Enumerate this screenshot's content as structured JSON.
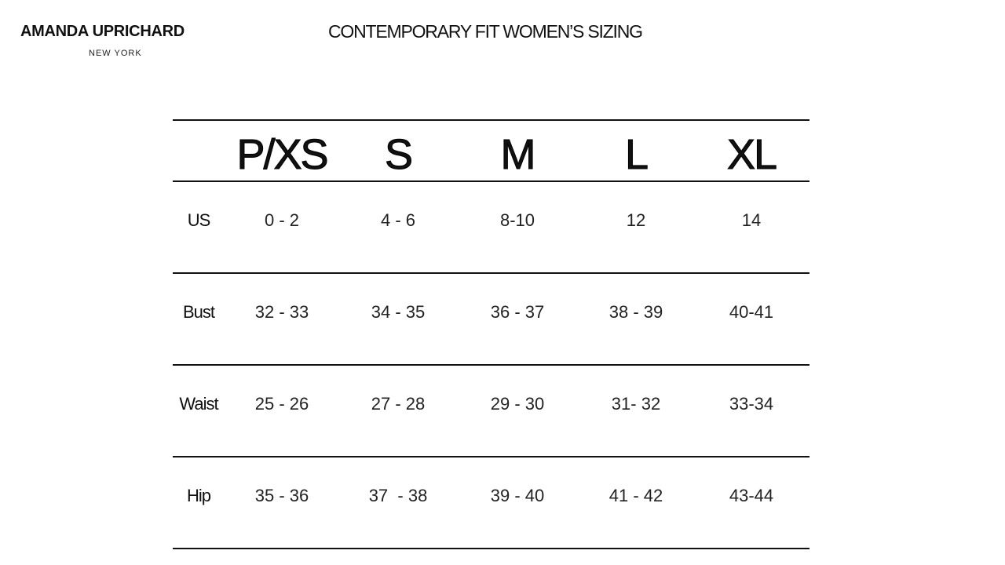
{
  "header": {
    "brand": "AMANDA UPRICHARD",
    "location": "NEW YORK",
    "title": "CONTEMPORARY FIT WOMEN’S SIZING"
  },
  "table": {
    "columns": [
      "P/XS",
      "S",
      "M",
      "L",
      "XL"
    ],
    "rows": [
      {
        "label": "US",
        "values": [
          "0 - 2",
          "4 - 6",
          "8-10",
          "12",
          "14"
        ]
      },
      {
        "label": "Bust",
        "values": [
          "32 - 33",
          "34 - 35",
          "36 - 37",
          "38 - 39",
          "40-41"
        ]
      },
      {
        "label": "Waist",
        "values": [
          "25 - 26",
          "27 - 28",
          "29 - 30",
          "31- 32",
          "33-34"
        ]
      },
      {
        "label": "Hip",
        "values": [
          "35 - 36",
          "37  - 38",
          "39 - 40",
          "41 - 42",
          "43-44"
        ]
      }
    ]
  }
}
